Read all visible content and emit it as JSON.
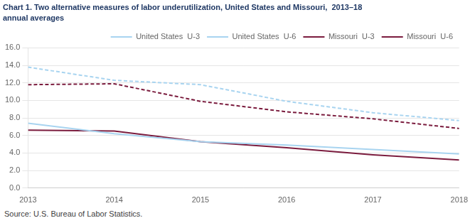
{
  "chart_data": {
    "type": "line",
    "title": "Chart 1. Two alternative measures of labor underutilization, United States and Missouri,  2013–18",
    "subtitle": "annual averages",
    "annotations": [
      "Source: U.S. Bureau of Labor Statistics."
    ],
    "x": [
      2013,
      2014,
      2015,
      2016,
      2017,
      2018
    ],
    "series": [
      {
        "name": "United States  U-3",
        "color": "#a8d4f0",
        "line_style": "solid",
        "values": [
          7.4,
          6.2,
          5.3,
          4.9,
          4.4,
          3.9
        ]
      },
      {
        "name": "United States  U-6",
        "color": "#a8d4f0",
        "line_style": "dashed",
        "values": [
          13.8,
          12.3,
          11.8,
          9.9,
          8.6,
          7.7
        ]
      },
      {
        "name": "Missouri  U-3",
        "color": "#7b1c3e",
        "line_style": "solid",
        "values": [
          6.6,
          6.5,
          5.3,
          4.6,
          3.8,
          3.2
        ]
      },
      {
        "name": "Missouri  U-6",
        "color": "#7b1c3e",
        "line_style": "dashed",
        "values": [
          11.8,
          11.9,
          9.9,
          8.7,
          7.9,
          6.8
        ]
      }
    ],
    "xlim": [
      2013,
      2018
    ],
    "xticks": [
      2013,
      2014,
      2015,
      2016,
      2017,
      2018
    ],
    "ylim": [
      0.0,
      16.0
    ],
    "yticks": [
      {
        "value": 0,
        "label": "0.0"
      },
      {
        "value": 2,
        "label": "2.0"
      },
      {
        "value": 4,
        "label": "4.0"
      },
      {
        "value": 6,
        "label": "6.0"
      },
      {
        "value": 8,
        "label": "8.0"
      },
      {
        "value": 10,
        "label": "10.0"
      },
      {
        "value": 12,
        "label": "12.0"
      },
      {
        "value": 14,
        "label": "14.0"
      },
      {
        "value": 16,
        "label": "16.0"
      }
    ],
    "grid": "y",
    "legend": "upper right"
  }
}
